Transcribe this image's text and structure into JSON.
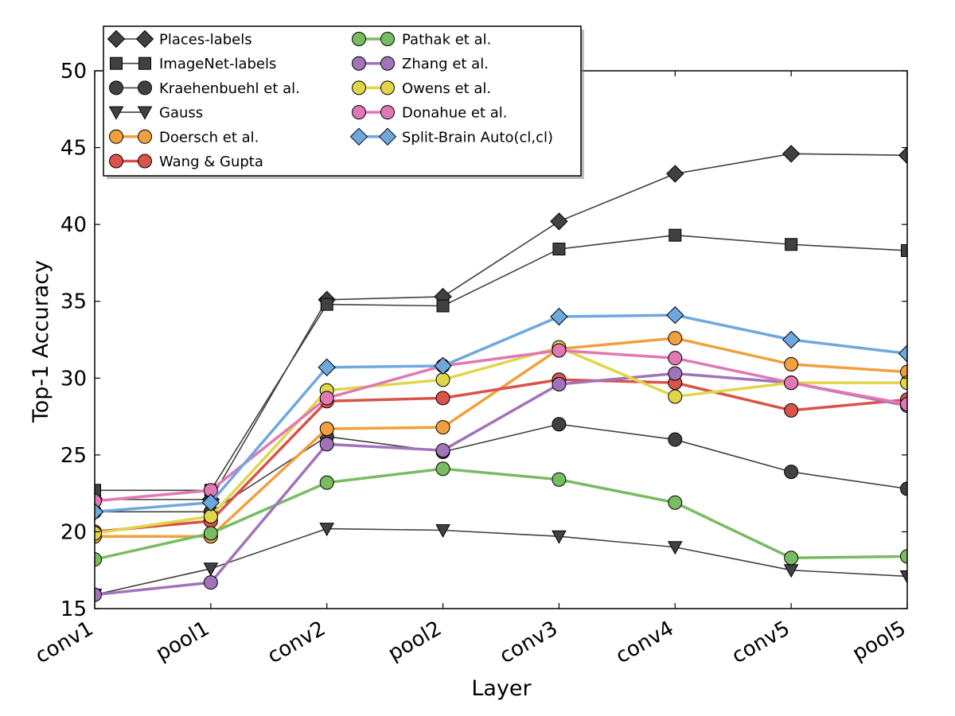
{
  "chart_data": {
    "type": "line",
    "xlabel": "Layer",
    "ylabel": "Top-1 Accuracy",
    "categories": [
      "conv1",
      "pool1",
      "conv2",
      "pool2",
      "conv3",
      "conv4",
      "conv5",
      "pool5"
    ],
    "ylim": [
      15,
      50
    ],
    "yticks": [
      15,
      20,
      25,
      30,
      35,
      40,
      45,
      50
    ],
    "grid": false,
    "legend_position": "top-left",
    "series": [
      {
        "name": "Places-labels",
        "color": "#414141",
        "marker": "diamond",
        "thin": true,
        "values": [
          22.1,
          22.1,
          35.1,
          35.3,
          40.2,
          43.3,
          44.6,
          44.5
        ]
      },
      {
        "name": "ImageNet-labels",
        "color": "#414141",
        "marker": "square",
        "thin": true,
        "values": [
          22.7,
          22.7,
          34.8,
          34.7,
          38.4,
          39.3,
          38.7,
          38.3
        ]
      },
      {
        "name": "Kraehenbuehl et al.",
        "color": "#414141",
        "marker": "circle",
        "thin": true,
        "values": [
          21.3,
          21.3,
          26.2,
          25.2,
          27.0,
          26.0,
          23.9,
          22.8
        ]
      },
      {
        "name": "Gauss",
        "color": "#414141",
        "marker": "triangle-down",
        "thin": true,
        "values": [
          15.9,
          17.6,
          20.2,
          20.1,
          19.7,
          19.0,
          17.5,
          17.1
        ]
      },
      {
        "name": "Doersch et al.",
        "color": "#f0a03c",
        "marker": "circle",
        "thin": false,
        "values": [
          19.7,
          19.7,
          26.7,
          26.8,
          31.9,
          32.6,
          30.9,
          30.4
        ]
      },
      {
        "name": "Wang & Gupta",
        "color": "#d9534a",
        "marker": "circle",
        "thin": false,
        "values": [
          20.0,
          20.7,
          28.5,
          28.7,
          29.9,
          29.7,
          27.9,
          28.6
        ]
      },
      {
        "name": "Pathak et al.",
        "color": "#78bc61",
        "marker": "circle",
        "thin": false,
        "values": [
          18.2,
          19.9,
          23.2,
          24.1,
          23.4,
          21.9,
          18.3,
          18.4
        ]
      },
      {
        "name": "Zhang et al.",
        "color": "#a173b9",
        "marker": "circle",
        "thin": false,
        "values": [
          15.9,
          16.7,
          25.7,
          25.3,
          29.6,
          30.3,
          29.7,
          28.2
        ]
      },
      {
        "name": "Owens et al.",
        "color": "#e1d64a",
        "marker": "circle",
        "thin": false,
        "values": [
          19.9,
          21.0,
          29.2,
          29.9,
          32.0,
          28.8,
          29.7,
          29.7
        ]
      },
      {
        "name": "Donahue et al.",
        "color": "#e078b4",
        "marker": "circle",
        "thin": false,
        "values": [
          22.0,
          22.7,
          28.7,
          30.8,
          31.8,
          31.3,
          29.7,
          28.3
        ]
      },
      {
        "name": "Split-Brain Auto(cl,cl)",
        "color": "#6fa8dc",
        "marker": "diamond",
        "thin": false,
        "values": [
          21.3,
          21.9,
          30.7,
          30.8,
          34.0,
          34.1,
          32.5,
          31.6
        ]
      }
    ]
  }
}
